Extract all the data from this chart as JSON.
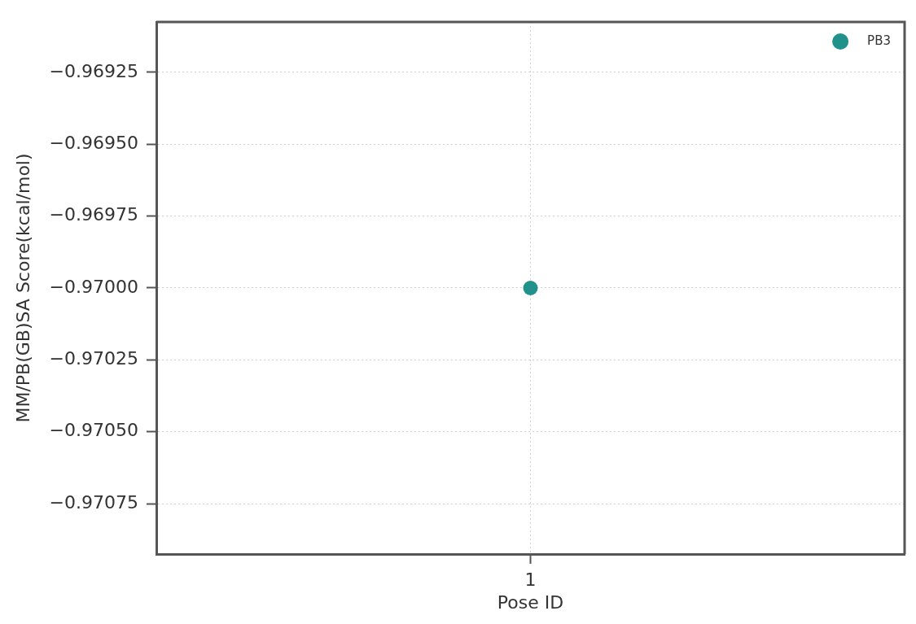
{
  "chart_data": {
    "type": "scatter",
    "xlabel": "Pose ID",
    "ylabel": "MM/PB(GB)SA Score(kcal/mol)",
    "categories": [
      "1"
    ],
    "series": [
      {
        "name": "PB3",
        "color": "#21918c",
        "values": [
          -0.97
        ]
      }
    ],
    "ylim": [
      -0.970925,
      -0.969075
    ],
    "yticks": [
      {
        "value": -0.97075,
        "label": "−0.97075"
      },
      {
        "value": -0.9705,
        "label": "−0.97050"
      },
      {
        "value": -0.97025,
        "label": "−0.97025"
      },
      {
        "value": -0.97,
        "label": "−0.97000"
      },
      {
        "value": -0.96975,
        "label": "−0.96975"
      },
      {
        "value": -0.9695,
        "label": "−0.96950"
      },
      {
        "value": -0.96925,
        "label": "−0.96925"
      }
    ],
    "grid": true,
    "legend": "top right",
    "marker": "circle"
  }
}
